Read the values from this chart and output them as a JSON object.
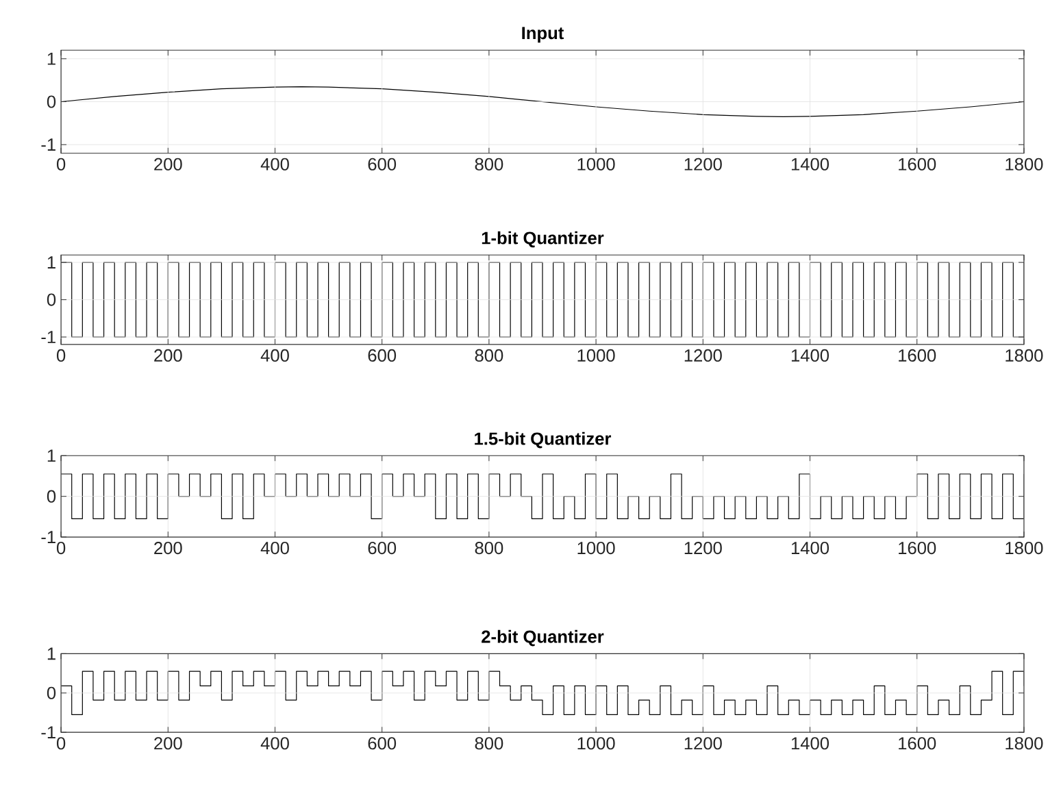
{
  "chart_data": [
    {
      "type": "line",
      "title": "Input",
      "color": "#000000",
      "grid": true,
      "xlim": [
        0,
        1800
      ],
      "ylim": [
        -1.2,
        1.2
      ],
      "xticks": [
        0,
        200,
        400,
        600,
        800,
        1000,
        1200,
        1400,
        1600,
        1800
      ],
      "yticks": [
        -1,
        0,
        1
      ],
      "x": [
        0,
        100,
        200,
        300,
        400,
        450,
        500,
        600,
        700,
        800,
        900,
        1000,
        1100,
        1200,
        1300,
        1350,
        1400,
        1500,
        1600,
        1700,
        1800
      ],
      "values": [
        0,
        0.12,
        0.22,
        0.3,
        0.34,
        0.35,
        0.34,
        0.3,
        0.22,
        0.12,
        0,
        -0.12,
        -0.22,
        -0.3,
        -0.34,
        -0.35,
        -0.34,
        -0.3,
        -0.22,
        -0.12,
        0
      ]
    },
    {
      "type": "step",
      "title": "1-bit Quantizer",
      "color": "#000000",
      "grid": true,
      "xlim": [
        0,
        1800
      ],
      "ylim": [
        -1.2,
        1.2
      ],
      "xticks": [
        0,
        200,
        400,
        600,
        800,
        1000,
        1200,
        1400,
        1600,
        1800
      ],
      "yticks": [
        -1,
        0,
        1
      ],
      "x": [
        0,
        20,
        40,
        60,
        80,
        100,
        120,
        140,
        160,
        180,
        200,
        220,
        240,
        260,
        280,
        300,
        320,
        340,
        360,
        380,
        400,
        420,
        440,
        460,
        480,
        500,
        520,
        540,
        560,
        580,
        600,
        620,
        640,
        660,
        680,
        700,
        720,
        740,
        760,
        780,
        800,
        820,
        840,
        860,
        880,
        900,
        920,
        940,
        960,
        980,
        1000,
        1020,
        1040,
        1060,
        1080,
        1100,
        1120,
        1140,
        1160,
        1180,
        1200,
        1220,
        1240,
        1260,
        1280,
        1300,
        1320,
        1340,
        1360,
        1380,
        1400,
        1420,
        1440,
        1460,
        1480,
        1500,
        1520,
        1540,
        1560,
        1580,
        1600,
        1620,
        1640,
        1660,
        1680,
        1700,
        1720,
        1740,
        1760,
        1780,
        1800
      ],
      "values": [
        1,
        -1,
        1,
        -1,
        1,
        -1,
        1,
        -1,
        1,
        -1,
        1,
        -1,
        1,
        -1,
        1,
        -1,
        1,
        -1,
        1,
        -1,
        1,
        -1,
        1,
        -1,
        1,
        -1,
        1,
        -1,
        1,
        -1,
        1,
        -1,
        1,
        -1,
        1,
        -1,
        1,
        -1,
        1,
        -1,
        1,
        -1,
        1,
        -1,
        1,
        -1,
        1,
        -1,
        1,
        -1,
        1,
        -1,
        1,
        -1,
        1,
        -1,
        1,
        -1,
        1,
        -1,
        1,
        -1,
        1,
        -1,
        1,
        -1,
        1,
        -1,
        1,
        -1,
        1,
        -1,
        1,
        -1,
        1,
        -1,
        1,
        -1,
        1,
        -1,
        1,
        -1,
        1,
        -1,
        1,
        -1,
        1,
        -1,
        1,
        -1,
        1
      ]
    },
    {
      "type": "step",
      "title": "1.5-bit Quantizer",
      "color": "#000000",
      "grid": true,
      "xlim": [
        0,
        1800
      ],
      "ylim": [
        -1,
        1
      ],
      "xticks": [
        0,
        200,
        400,
        600,
        800,
        1000,
        1200,
        1400,
        1600,
        1800
      ],
      "yticks": [
        -1,
        0,
        1
      ],
      "x": [
        0,
        20,
        40,
        60,
        80,
        100,
        120,
        140,
        160,
        180,
        200,
        220,
        240,
        260,
        280,
        300,
        320,
        340,
        360,
        380,
        400,
        420,
        440,
        460,
        480,
        500,
        520,
        540,
        560,
        580,
        600,
        620,
        640,
        660,
        680,
        700,
        720,
        740,
        760,
        780,
        800,
        820,
        840,
        860,
        880,
        900,
        920,
        940,
        960,
        980,
        1000,
        1020,
        1040,
        1060,
        1080,
        1100,
        1120,
        1140,
        1160,
        1180,
        1200,
        1220,
        1240,
        1260,
        1280,
        1300,
        1320,
        1340,
        1360,
        1380,
        1400,
        1420,
        1440,
        1460,
        1480,
        1500,
        1520,
        1540,
        1560,
        1580,
        1600,
        1620,
        1640,
        1660,
        1680,
        1700,
        1720,
        1740,
        1760,
        1780,
        1800
      ],
      "values": [
        0.55,
        -0.55,
        0.55,
        -0.55,
        0.55,
        -0.55,
        0.55,
        -0.55,
        0.55,
        -0.55,
        0.55,
        0,
        0.55,
        0,
        0.55,
        -0.55,
        0.55,
        -0.55,
        0.55,
        0,
        0.55,
        0,
        0.55,
        0,
        0.55,
        0,
        0.55,
        0,
        0.55,
        -0.55,
        0.55,
        0,
        0.55,
        0,
        0.55,
        -0.55,
        0.55,
        -0.55,
        0.55,
        -0.55,
        0.55,
        0,
        0.55,
        0,
        -0.55,
        0.55,
        -0.55,
        0,
        -0.55,
        0.55,
        -0.55,
        0.55,
        -0.55,
        0,
        -0.55,
        0,
        -0.55,
        0.55,
        -0.55,
        0,
        -0.55,
        0,
        -0.55,
        0,
        -0.55,
        0,
        -0.55,
        0,
        -0.55,
        0.55,
        -0.55,
        0,
        -0.55,
        0,
        -0.55,
        0,
        -0.55,
        0,
        -0.55,
        0,
        0.55,
        -0.55,
        0.55,
        -0.55,
        0.55,
        -0.55,
        0.55,
        -0.55,
        0.55,
        -0.55,
        0.55
      ]
    },
    {
      "type": "step",
      "title": "2-bit Quantizer",
      "color": "#000000",
      "grid": true,
      "xlim": [
        0,
        1800
      ],
      "ylim": [
        -1,
        1
      ],
      "xticks": [
        0,
        200,
        400,
        600,
        800,
        1000,
        1200,
        1400,
        1600,
        1800
      ],
      "yticks": [
        -1,
        0,
        1
      ],
      "x": [
        0,
        20,
        40,
        60,
        80,
        100,
        120,
        140,
        160,
        180,
        200,
        220,
        240,
        260,
        280,
        300,
        320,
        340,
        360,
        380,
        400,
        420,
        440,
        460,
        480,
        500,
        520,
        540,
        560,
        580,
        600,
        620,
        640,
        660,
        680,
        700,
        720,
        740,
        760,
        780,
        800,
        820,
        840,
        860,
        880,
        900,
        920,
        940,
        960,
        980,
        1000,
        1020,
        1040,
        1060,
        1080,
        1100,
        1120,
        1140,
        1160,
        1180,
        1200,
        1220,
        1240,
        1260,
        1280,
        1300,
        1320,
        1340,
        1360,
        1380,
        1400,
        1420,
        1440,
        1460,
        1480,
        1500,
        1520,
        1540,
        1560,
        1580,
        1600,
        1620,
        1640,
        1660,
        1680,
        1700,
        1720,
        1740,
        1760,
        1780,
        1800
      ],
      "values": [
        0.18,
        -0.55,
        0.55,
        -0.18,
        0.55,
        -0.18,
        0.55,
        -0.18,
        0.55,
        -0.18,
        0.55,
        -0.18,
        0.55,
        0.18,
        0.55,
        -0.18,
        0.55,
        0.18,
        0.55,
        0.18,
        0.55,
        -0.18,
        0.55,
        0.18,
        0.55,
        0.18,
        0.55,
        0.18,
        0.55,
        -0.18,
        0.55,
        0.18,
        0.55,
        -0.18,
        0.55,
        0.18,
        0.55,
        -0.18,
        0.55,
        -0.18,
        0.55,
        0.18,
        -0.18,
        0.18,
        -0.18,
        -0.55,
        0.18,
        -0.55,
        0.18,
        -0.55,
        0.18,
        -0.55,
        0.18,
        -0.55,
        -0.18,
        -0.55,
        0.18,
        -0.55,
        -0.18,
        -0.55,
        0.18,
        -0.55,
        -0.18,
        -0.55,
        -0.18,
        -0.55,
        0.18,
        -0.55,
        -0.18,
        -0.55,
        -0.18,
        -0.55,
        -0.18,
        -0.55,
        -0.18,
        -0.55,
        0.18,
        -0.55,
        -0.18,
        -0.55,
        0.18,
        -0.55,
        -0.18,
        -0.55,
        0.18,
        -0.55,
        -0.18,
        0.55,
        -0.55,
        0.55,
        0.18
      ]
    }
  ]
}
